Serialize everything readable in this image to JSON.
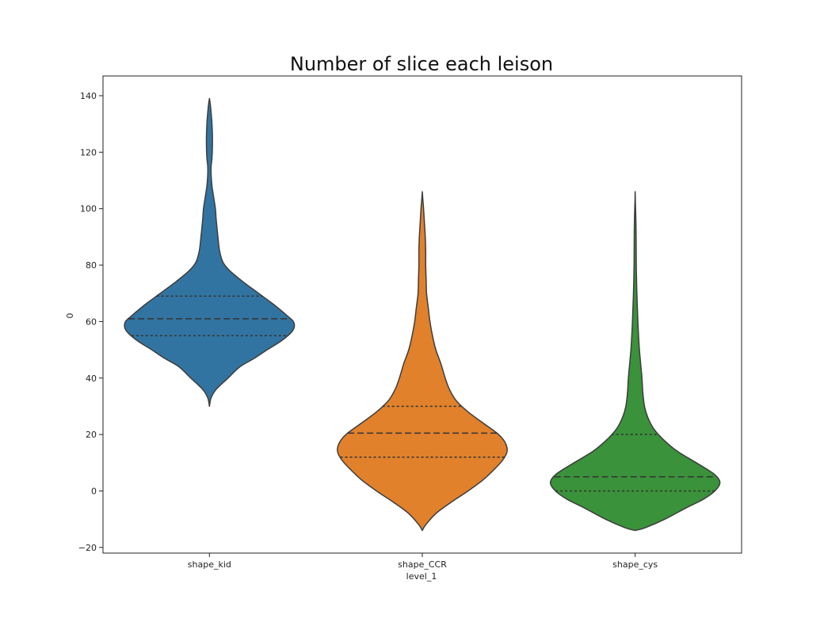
{
  "chart_data": {
    "type": "violin",
    "title": "Number of slice each leison",
    "xlabel": "level_1",
    "ylabel": "0",
    "ylim": [
      -22,
      147
    ],
    "yticks": [
      -20,
      0,
      20,
      40,
      60,
      80,
      100,
      120,
      140
    ],
    "ytick_labels": [
      "−20",
      "0",
      "20",
      "40",
      "60",
      "80",
      "100",
      "120",
      "140"
    ],
    "grid": false,
    "categories": [
      "shape_kid",
      "shape_CCR",
      "shape_cys"
    ],
    "series": [
      {
        "category": "shape_kid",
        "color": "#3274a1",
        "quartiles": {
          "q1": 55,
          "median": 61,
          "q3": 69
        },
        "profile": [
          [
            30,
            0.0
          ],
          [
            33,
            0.02
          ],
          [
            36,
            0.08
          ],
          [
            40,
            0.22
          ],
          [
            44,
            0.36
          ],
          [
            47,
            0.53
          ],
          [
            50,
            0.68
          ],
          [
            53,
            0.84
          ],
          [
            56,
            0.96
          ],
          [
            58,
            1.0
          ],
          [
            60,
            0.99
          ],
          [
            62,
            0.92
          ],
          [
            66,
            0.76
          ],
          [
            70,
            0.58
          ],
          [
            74,
            0.4
          ],
          [
            78,
            0.24
          ],
          [
            81,
            0.16
          ],
          [
            85,
            0.12
          ],
          [
            90,
            0.1
          ],
          [
            96,
            0.08
          ],
          [
            100,
            0.07
          ],
          [
            104,
            0.05
          ],
          [
            108,
            0.03
          ],
          [
            112,
            0.02
          ],
          [
            115,
            0.02
          ],
          [
            118,
            0.03
          ],
          [
            122,
            0.035
          ],
          [
            126,
            0.035
          ],
          [
            130,
            0.03
          ],
          [
            134,
            0.02
          ],
          [
            137,
            0.01
          ],
          [
            139,
            0.0
          ]
        ]
      },
      {
        "category": "shape_CCR",
        "color": "#e1812c",
        "quartiles": {
          "q1": 12,
          "median": 20.5,
          "q3": 30
        },
        "profile": [
          [
            -14,
            0.0
          ],
          [
            -12,
            0.04
          ],
          [
            -8,
            0.16
          ],
          [
            -4,
            0.34
          ],
          [
            0,
            0.54
          ],
          [
            4,
            0.72
          ],
          [
            8,
            0.86
          ],
          [
            11,
            0.95
          ],
          [
            14,
            1.0
          ],
          [
            17,
            0.98
          ],
          [
            20,
            0.9
          ],
          [
            24,
            0.72
          ],
          [
            28,
            0.54
          ],
          [
            32,
            0.4
          ],
          [
            36,
            0.32
          ],
          [
            40,
            0.27
          ],
          [
            45,
            0.22
          ],
          [
            50,
            0.16
          ],
          [
            55,
            0.12
          ],
          [
            60,
            0.09
          ],
          [
            65,
            0.07
          ],
          [
            70,
            0.05
          ],
          [
            75,
            0.045
          ],
          [
            80,
            0.04
          ],
          [
            85,
            0.04
          ],
          [
            90,
            0.035
          ],
          [
            95,
            0.025
          ],
          [
            100,
            0.015
          ],
          [
            103,
            0.007
          ],
          [
            106,
            0.0
          ]
        ]
      },
      {
        "category": "shape_cys",
        "color": "#3a923a",
        "quartiles": {
          "q1": 0,
          "median": 5,
          "q3": 20
        },
        "profile": [
          [
            -14,
            0.0
          ],
          [
            -13,
            0.12
          ],
          [
            -10,
            0.35
          ],
          [
            -6,
            0.6
          ],
          [
            -3,
            0.8
          ],
          [
            0,
            0.94
          ],
          [
            3,
            1.0
          ],
          [
            6,
            0.93
          ],
          [
            10,
            0.72
          ],
          [
            14,
            0.5
          ],
          [
            18,
            0.34
          ],
          [
            22,
            0.22
          ],
          [
            26,
            0.15
          ],
          [
            30,
            0.11
          ],
          [
            35,
            0.09
          ],
          [
            40,
            0.08
          ],
          [
            45,
            0.065
          ],
          [
            50,
            0.05
          ],
          [
            55,
            0.04
          ],
          [
            60,
            0.032
          ],
          [
            65,
            0.026
          ],
          [
            70,
            0.02
          ],
          [
            75,
            0.016
          ],
          [
            80,
            0.013
          ],
          [
            85,
            0.012
          ],
          [
            90,
            0.011
          ],
          [
            95,
            0.009
          ],
          [
            100,
            0.005
          ],
          [
            103,
            0.002
          ],
          [
            106,
            0.0
          ]
        ]
      }
    ]
  }
}
